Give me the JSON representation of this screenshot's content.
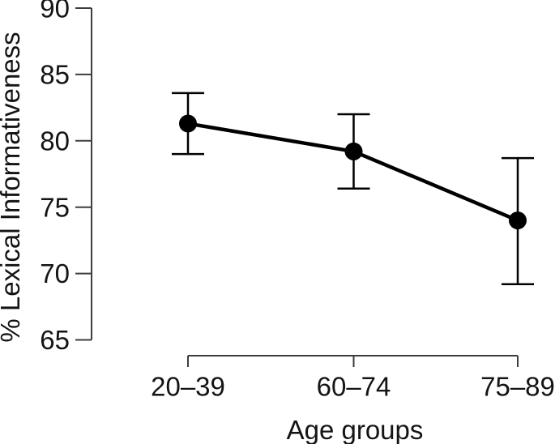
{
  "figure": {
    "background_color": "#ffffff",
    "ink_color": "#000000",
    "axis_color": "#3d3d3d"
  },
  "chart_data": {
    "type": "line",
    "title": "",
    "xlabel": "Age groups",
    "ylabel": "% Lexical Informativeness",
    "categories": [
      "20–39",
      "60–74",
      "75–89"
    ],
    "series": [
      {
        "name": "% Lexical Informativeness",
        "values": [
          81.3,
          79.2,
          74.0
        ],
        "error_low": [
          79.0,
          76.4,
          69.2
        ],
        "error_high": [
          83.6,
          82.0,
          78.7
        ]
      }
    ],
    "ylim": [
      65,
      90
    ],
    "yticks": [
      65,
      70,
      75,
      80,
      85,
      90
    ],
    "grid": false,
    "legend": "none",
    "marker": "filled-circle",
    "marker_color": "#000000",
    "line_color": "#000000",
    "error_bars": true
  }
}
